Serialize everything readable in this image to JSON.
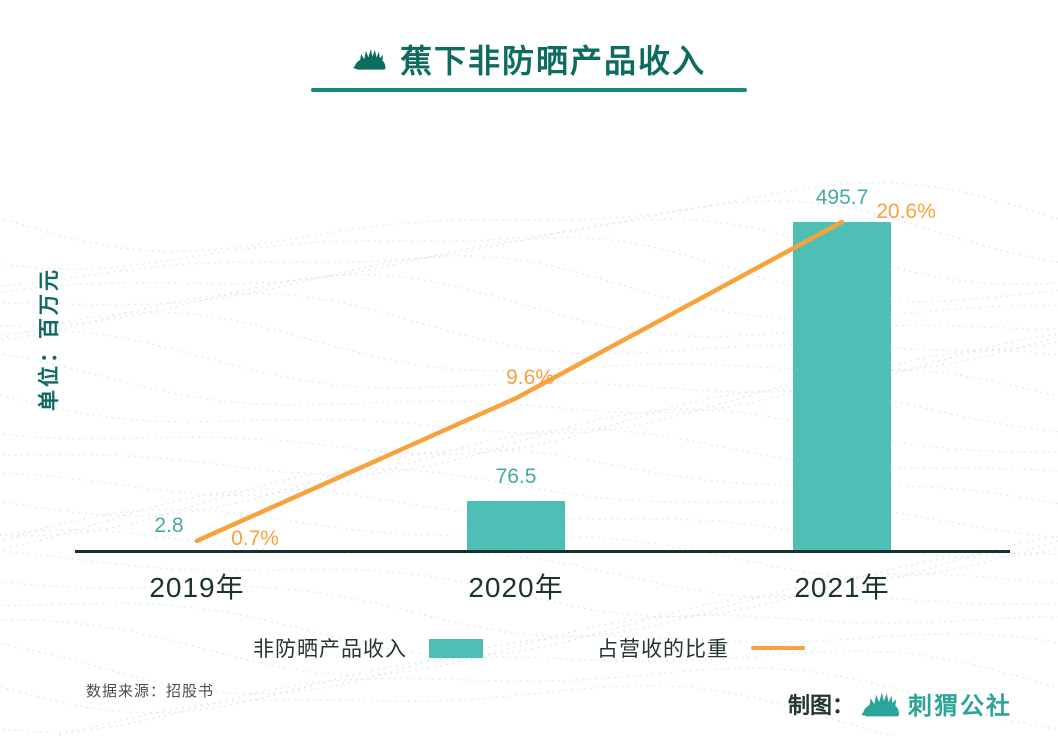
{
  "title": {
    "text": "蕉下非防晒产品收入"
  },
  "chart_data": {
    "type": "bar+line",
    "title": "蕉下非防晒产品收入",
    "ylabel": "单位：百万元",
    "categories": [
      "2019年",
      "2020年",
      "2021年"
    ],
    "series": [
      {
        "name": "非防晒产品收入",
        "kind": "bar",
        "values": [
          2.8,
          76.5,
          495.7
        ],
        "labels": [
          "2.8",
          "76.5",
          "495.7"
        ],
        "color": "#4ebfb4",
        "label_color": "#43aba0"
      },
      {
        "name": "占营收的比重",
        "kind": "line",
        "values": [
          0.7,
          9.6,
          20.6
        ],
        "labels": [
          "0.7%",
          "9.6%",
          "20.6%"
        ],
        "color": "#f7a23c",
        "label_color": "#f7a23c"
      }
    ],
    "bar_ylim": [
      0,
      500
    ],
    "line_ylim": [
      0,
      21
    ],
    "grid": false,
    "legend_position": "bottom"
  },
  "legend": {
    "items": [
      {
        "label": "非防晒产品收入",
        "swatch": "bar"
      },
      {
        "label": "占营收的比重",
        "swatch": "line"
      }
    ]
  },
  "footer": {
    "source": "数据来源：招股书",
    "credit_label": "制图：",
    "credit_name": "刺猬公社"
  },
  "colors": {
    "title_teal": "#0d6c60",
    "underline_teal": "#16897c",
    "bar_teal": "#4ebfb4",
    "line_orange": "#f7a23c",
    "axis_dark": "#12332f",
    "text_dark": "#1d3330",
    "wave_blue": "#d2e0f3"
  }
}
